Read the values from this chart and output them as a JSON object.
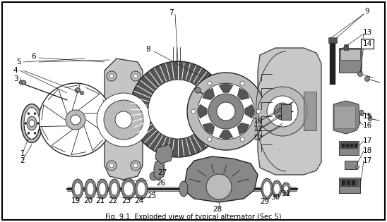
{
  "title": "Fig. 9.1  Exploded view of typical alternator (Sec 5)",
  "bg": "#ffffff",
  "fg": "#000000",
  "gray1": "#222222",
  "gray2": "#555555",
  "gray3": "#888888",
  "gray4": "#bbbbbb",
  "fig_w": 5.48,
  "fig_h": 3.15,
  "dpi": 100
}
